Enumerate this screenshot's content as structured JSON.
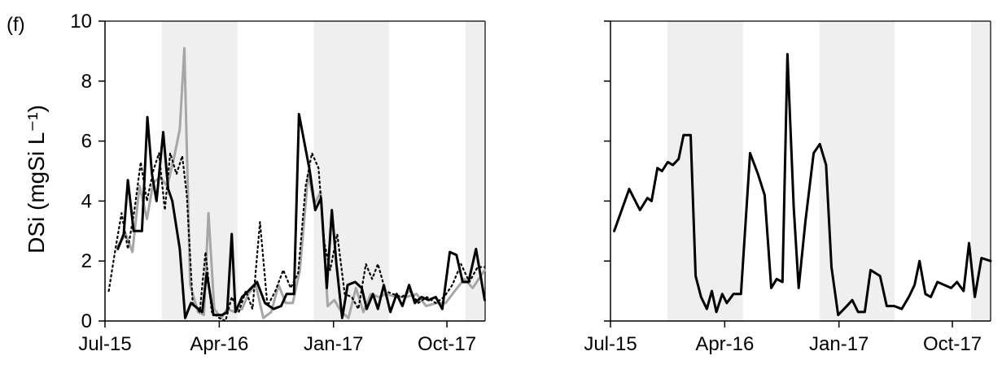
{
  "panel_label": "(f)",
  "chart_data": [
    {
      "type": "line",
      "title": "",
      "ylabel": "DSi (mgSi L⁻¹)",
      "ylim": [
        0,
        10
      ],
      "yticks": [
        0,
        2,
        4,
        6,
        8,
        10
      ],
      "x_tick_labels": [
        "Jul-15",
        "Apr-16",
        "Jan-17",
        "Oct-17"
      ],
      "x_tick_dates": [
        "2015-07-01",
        "2016-04-01",
        "2017-01-01",
        "2017-10-01"
      ],
      "xlim": [
        "2015-07-01",
        "2018-01-01"
      ],
      "shaded_periods": [
        [
          "2015-11-15",
          "2016-05-15"
        ],
        [
          "2016-11-15",
          "2017-05-15"
        ],
        [
          "2017-11-15",
          "2018-01-01"
        ]
      ],
      "colors": {
        "black": "#000000",
        "gray": "#a6a6a6",
        "shade": "#efefef"
      },
      "series": [
        {
          "style": "solid-black",
          "points": [
            [
              "2015-08-01",
              2.4
            ],
            [
              "2015-08-15",
              2.9
            ],
            [
              "2015-08-25",
              4.7
            ],
            [
              "2015-09-08",
              3.0
            ],
            [
              "2015-09-28",
              3.0
            ],
            [
              "2015-10-11",
              6.8
            ],
            [
              "2015-10-22",
              4.9
            ],
            [
              "2015-11-02",
              4.0
            ],
            [
              "2015-11-18",
              6.3
            ],
            [
              "2015-11-30",
              4.4
            ],
            [
              "2015-12-10",
              4.0
            ],
            [
              "2015-12-28",
              2.4
            ],
            [
              "2016-01-10",
              0.1
            ],
            [
              "2016-01-24",
              0.6
            ],
            [
              "2016-02-20",
              0.3
            ],
            [
              "2016-03-02",
              1.6
            ],
            [
              "2016-03-18",
              0.2
            ],
            [
              "2016-04-08",
              0.2
            ],
            [
              "2016-04-20",
              0.3
            ],
            [
              "2016-05-01",
              2.9
            ],
            [
              "2016-05-10",
              0.3
            ],
            [
              "2016-05-26",
              0.8
            ],
            [
              "2016-06-10",
              1.0
            ],
            [
              "2016-07-01",
              1.3
            ],
            [
              "2016-07-20",
              0.6
            ],
            [
              "2016-08-10",
              0.4
            ],
            [
              "2016-08-28",
              0.5
            ],
            [
              "2016-09-10",
              0.9
            ],
            [
              "2016-09-28",
              0.9
            ],
            [
              "2016-10-10",
              6.9
            ],
            [
              "2016-11-05",
              5.0
            ],
            [
              "2016-11-18",
              3.7
            ],
            [
              "2016-12-02",
              4.1
            ],
            [
              "2016-12-16",
              1.1
            ],
            [
              "2016-12-28",
              3.7
            ],
            [
              "2017-01-08",
              1.9
            ],
            [
              "2017-01-22",
              0.1
            ],
            [
              "2017-02-04",
              1.2
            ],
            [
              "2017-02-22",
              1.3
            ],
            [
              "2017-03-10",
              1.1
            ],
            [
              "2017-03-22",
              0.4
            ],
            [
              "2017-04-06",
              0.9
            ],
            [
              "2017-04-18",
              0.4
            ],
            [
              "2017-05-02",
              1.2
            ],
            [
              "2017-05-18",
              0.3
            ],
            [
              "2017-06-02",
              0.9
            ],
            [
              "2017-06-16",
              0.5
            ],
            [
              "2017-07-02",
              1.2
            ],
            [
              "2017-07-16",
              0.6
            ],
            [
              "2017-08-01",
              0.8
            ],
            [
              "2017-08-18",
              0.7
            ],
            [
              "2017-09-04",
              0.8
            ],
            [
              "2017-09-20",
              0.4
            ],
            [
              "2017-10-08",
              2.3
            ],
            [
              "2017-10-24",
              2.2
            ],
            [
              "2017-11-08",
              1.3
            ],
            [
              "2017-11-22",
              1.3
            ],
            [
              "2017-12-10",
              2.4
            ],
            [
              "2017-12-31",
              0.7
            ]
          ]
        },
        {
          "style": "solid-gray",
          "points": [
            [
              "2015-08-01",
              2.5
            ],
            [
              "2015-08-20",
              2.9
            ],
            [
              "2015-09-05",
              2.3
            ],
            [
              "2015-09-22",
              4.5
            ],
            [
              "2015-10-10",
              3.4
            ],
            [
              "2015-10-25",
              4.6
            ],
            [
              "2015-11-10",
              4.8
            ],
            [
              "2015-11-28",
              4.5
            ],
            [
              "2015-12-15",
              5.5
            ],
            [
              "2015-12-28",
              6.4
            ],
            [
              "2016-01-08",
              9.1
            ],
            [
              "2016-01-22",
              1.2
            ],
            [
              "2016-02-10",
              0.3
            ],
            [
              "2016-02-24",
              0.2
            ],
            [
              "2016-03-06",
              3.6
            ],
            [
              "2016-03-20",
              0.4
            ],
            [
              "2016-04-06",
              0.1
            ],
            [
              "2016-04-20",
              0.4
            ],
            [
              "2016-05-08",
              0.3
            ],
            [
              "2016-05-26",
              0.4
            ],
            [
              "2016-06-10",
              0.9
            ],
            [
              "2016-06-28",
              1.2
            ],
            [
              "2016-07-16",
              0.1
            ],
            [
              "2016-08-04",
              0.3
            ],
            [
              "2016-08-22",
              1.2
            ],
            [
              "2016-09-08",
              0.6
            ],
            [
              "2016-09-25",
              0.6
            ],
            [
              "2016-10-12",
              1.7
            ],
            [
              "2016-11-01",
              4.9
            ],
            [
              "2016-11-16",
              3.9
            ],
            [
              "2016-12-01",
              4.3
            ],
            [
              "2016-12-18",
              0.5
            ],
            [
              "2017-01-03",
              0.7
            ],
            [
              "2017-01-20",
              0.3
            ],
            [
              "2017-02-06",
              0.1
            ],
            [
              "2017-02-24",
              1.1
            ],
            [
              "2017-03-14",
              0.3
            ],
            [
              "2017-04-01",
              0.9
            ],
            [
              "2017-04-20",
              0.8
            ],
            [
              "2017-05-08",
              0.9
            ],
            [
              "2017-06-01",
              0.8
            ],
            [
              "2017-06-24",
              0.8
            ],
            [
              "2017-07-20",
              0.9
            ],
            [
              "2017-08-12",
              0.5
            ],
            [
              "2017-09-06",
              0.6
            ],
            [
              "2017-09-28",
              0.6
            ],
            [
              "2017-10-20",
              1.0
            ],
            [
              "2017-11-12",
              1.4
            ],
            [
              "2017-12-02",
              1.1
            ],
            [
              "2017-12-31",
              1.7
            ]
          ]
        },
        {
          "style": "dotted-black",
          "points": [
            [
              "2015-07-10",
              1.0
            ],
            [
              "2015-07-25",
              2.3
            ],
            [
              "2015-08-10",
              3.6
            ],
            [
              "2015-08-25",
              2.4
            ],
            [
              "2015-09-10",
              3.7
            ],
            [
              "2015-09-25",
              5.3
            ],
            [
              "2015-10-10",
              4.0
            ],
            [
              "2015-10-25",
              5.0
            ],
            [
              "2015-11-08",
              5.6
            ],
            [
              "2015-11-22",
              3.7
            ],
            [
              "2015-12-05",
              5.6
            ],
            [
              "2015-12-20",
              4.9
            ],
            [
              "2016-01-03",
              5.5
            ],
            [
              "2016-01-14",
              4.2
            ],
            [
              "2016-01-28",
              0.6
            ],
            [
              "2016-02-14",
              0.3
            ],
            [
              "2016-02-28",
              2.3
            ],
            [
              "2016-03-14",
              0.3
            ],
            [
              "2016-04-01",
              0.1
            ],
            [
              "2016-04-16",
              0.0
            ],
            [
              "2016-05-01",
              0.8
            ],
            [
              "2016-05-18",
              0.3
            ],
            [
              "2016-06-04",
              1.0
            ],
            [
              "2016-06-20",
              0.4
            ],
            [
              "2016-07-08",
              3.3
            ],
            [
              "2016-07-26",
              0.5
            ],
            [
              "2016-08-14",
              1.0
            ],
            [
              "2016-09-02",
              1.7
            ],
            [
              "2016-09-20",
              1.1
            ],
            [
              "2016-10-08",
              1.6
            ],
            [
              "2016-10-26",
              4.5
            ],
            [
              "2016-11-10",
              5.6
            ],
            [
              "2016-11-26",
              5.1
            ],
            [
              "2016-12-10",
              2.6
            ],
            [
              "2016-12-24",
              1.7
            ],
            [
              "2017-01-10",
              2.9
            ],
            [
              "2017-01-28",
              0.9
            ],
            [
              "2017-02-14",
              0.8
            ],
            [
              "2017-03-02",
              0.4
            ],
            [
              "2017-03-20",
              1.9
            ],
            [
              "2017-04-04",
              1.4
            ],
            [
              "2017-04-18",
              1.9
            ],
            [
              "2017-05-06",
              1.0
            ],
            [
              "2017-05-24",
              0.9
            ],
            [
              "2017-06-14",
              0.8
            ],
            [
              "2017-07-04",
              1.0
            ],
            [
              "2017-07-24",
              0.6
            ],
            [
              "2017-08-14",
              0.8
            ],
            [
              "2017-09-04",
              0.6
            ],
            [
              "2017-09-24",
              0.8
            ],
            [
              "2017-10-14",
              1.2
            ],
            [
              "2017-11-04",
              1.9
            ],
            [
              "2017-11-24",
              1.3
            ],
            [
              "2017-12-14",
              1.8
            ],
            [
              "2017-12-31",
              1.8
            ]
          ]
        }
      ]
    },
    {
      "type": "line",
      "title": "",
      "ylim": [
        0,
        10
      ],
      "yticks": [
        0,
        2,
        4,
        6,
        8,
        10
      ],
      "x_tick_labels": [
        "Jul-15",
        "Apr-16",
        "Jan-17",
        "Oct-17"
      ],
      "x_tick_dates": [
        "2015-07-01",
        "2016-04-01",
        "2017-01-01",
        "2017-10-01"
      ],
      "xlim": [
        "2015-07-01",
        "2018-01-01"
      ],
      "shaded_periods": [
        [
          "2015-11-15",
          "2016-05-15"
        ],
        [
          "2016-11-15",
          "2017-05-15"
        ],
        [
          "2017-11-15",
          "2018-01-01"
        ]
      ],
      "colors": {
        "black": "#000000",
        "shade": "#efefef"
      },
      "series": [
        {
          "style": "solid-black",
          "points": [
            [
              "2015-07-10",
              3.0
            ],
            [
              "2015-08-15",
              4.4
            ],
            [
              "2015-09-10",
              3.7
            ],
            [
              "2015-09-28",
              4.1
            ],
            [
              "2015-10-08",
              4.0
            ],
            [
              "2015-10-22",
              5.1
            ],
            [
              "2015-11-02",
              5.0
            ],
            [
              "2015-11-16",
              5.3
            ],
            [
              "2015-11-28",
              5.2
            ],
            [
              "2015-12-12",
              5.4
            ],
            [
              "2015-12-24",
              6.2
            ],
            [
              "2016-01-10",
              6.2
            ],
            [
              "2016-01-22",
              1.5
            ],
            [
              "2016-02-04",
              0.8
            ],
            [
              "2016-02-18",
              0.4
            ],
            [
              "2016-03-01",
              1.0
            ],
            [
              "2016-03-12",
              0.3
            ],
            [
              "2016-03-26",
              0.9
            ],
            [
              "2016-04-06",
              0.6
            ],
            [
              "2016-04-22",
              0.9
            ],
            [
              "2016-05-10",
              0.9
            ],
            [
              "2016-06-01",
              5.6
            ],
            [
              "2016-06-20",
              4.9
            ],
            [
              "2016-07-06",
              4.2
            ],
            [
              "2016-07-22",
              1.1
            ],
            [
              "2016-08-04",
              1.4
            ],
            [
              "2016-08-18",
              1.3
            ],
            [
              "2016-08-30",
              8.9
            ],
            [
              "2016-09-14",
              3.8
            ],
            [
              "2016-09-26",
              1.1
            ],
            [
              "2016-10-12",
              3.3
            ],
            [
              "2016-11-01",
              5.6
            ],
            [
              "2016-11-16",
              5.9
            ],
            [
              "2016-12-01",
              5.2
            ],
            [
              "2016-12-14",
              1.8
            ],
            [
              "2016-12-30",
              0.2
            ],
            [
              "2017-01-20",
              0.5
            ],
            [
              "2017-02-02",
              0.7
            ],
            [
              "2017-02-16",
              0.3
            ],
            [
              "2017-03-04",
              0.3
            ],
            [
              "2017-03-18",
              1.7
            ],
            [
              "2017-04-10",
              1.5
            ],
            [
              "2017-04-26",
              0.5
            ],
            [
              "2017-05-14",
              0.5
            ],
            [
              "2017-06-01",
              0.4
            ],
            [
              "2017-06-18",
              0.8
            ],
            [
              "2017-07-02",
              1.2
            ],
            [
              "2017-07-14",
              2.0
            ],
            [
              "2017-07-28",
              0.9
            ],
            [
              "2017-08-10",
              0.8
            ],
            [
              "2017-08-26",
              1.3
            ],
            [
              "2017-09-28",
              1.1
            ],
            [
              "2017-10-12",
              1.3
            ],
            [
              "2017-10-28",
              1.0
            ],
            [
              "2017-11-10",
              2.6
            ],
            [
              "2017-11-24",
              0.8
            ],
            [
              "2017-12-10",
              2.1
            ],
            [
              "2018-01-01",
              2.0
            ]
          ]
        }
      ]
    }
  ]
}
